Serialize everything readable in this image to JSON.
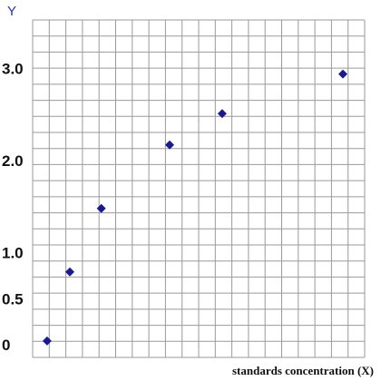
{
  "chart_data": {
    "type": "scatter",
    "title": "",
    "xlabel": "standards concentration (X)",
    "ylabel": "Y",
    "y_tick_labels": [
      {
        "value": 0,
        "label": "0"
      },
      {
        "value": 0.5,
        "label": "0.5"
      },
      {
        "value": 1.0,
        "label": "1.0"
      },
      {
        "value": 2.0,
        "label": "2.0"
      },
      {
        "value": 3.0,
        "label": "3.0"
      }
    ],
    "x_tick_labels": [],
    "xlim": [
      0,
      20
    ],
    "ylim": [
      0,
      3.5
    ],
    "grid": true,
    "legend": "none",
    "marker": "diamond",
    "series": [
      {
        "x": [
          0.2,
          1.5,
          3.3,
          7.2,
          10.2,
          17.1
        ],
        "y": [
          0.04,
          0.79,
          1.48,
          2.17,
          2.51,
          2.94
        ]
      }
    ],
    "colors": {
      "marker": "#1a1a8c",
      "grid": "#9a9a9a",
      "y_title": "#2233aa"
    }
  }
}
